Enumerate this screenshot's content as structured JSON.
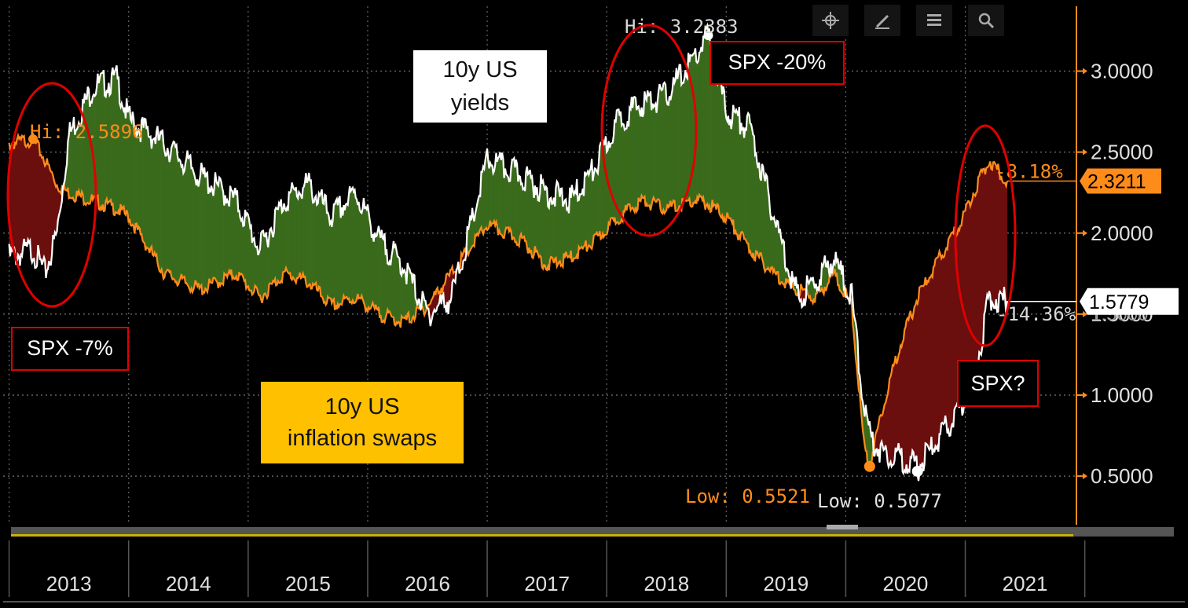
{
  "chart_data": {
    "type": "area",
    "title": "",
    "xlabel": "",
    "ylabel": "",
    "x_ticks": [
      "2013",
      "2014",
      "2015",
      "2016",
      "2017",
      "2018",
      "2019",
      "2020",
      "2021"
    ],
    "ylim": [
      0.2,
      3.4
    ],
    "y_ticks": [
      "0.5000",
      "1.0000",
      "1.5000",
      "2.0000",
      "2.5000",
      "3.0000"
    ],
    "grid": true,
    "series": [
      {
        "name": "10y US yields",
        "color": "#ffffff",
        "t": [
          2013.0,
          2013.2,
          2013.3,
          2013.4,
          2013.5,
          2013.7,
          2013.9,
          2014.0,
          2014.3,
          2014.6,
          2014.9,
          2015.1,
          2015.3,
          2015.5,
          2015.7,
          2015.9,
          2016.1,
          2016.3,
          2016.5,
          2016.7,
          2016.85,
          2017.0,
          2017.3,
          2017.5,
          2017.7,
          2017.9,
          2018.1,
          2018.3,
          2018.5,
          2018.75,
          2018.85,
          2019.0,
          2019.2,
          2019.4,
          2019.6,
          2019.75,
          2019.9,
          2020.05,
          2020.15,
          2020.2,
          2020.3,
          2020.45,
          2020.6,
          2020.75,
          2020.95,
          2021.1,
          2021.2,
          2021.35
        ],
        "values": [
          1.85,
          1.9,
          1.75,
          2.0,
          2.6,
          2.9,
          2.95,
          2.7,
          2.55,
          2.35,
          2.2,
          1.9,
          2.2,
          2.3,
          2.1,
          2.25,
          1.95,
          1.8,
          1.5,
          1.6,
          2.0,
          2.45,
          2.35,
          2.25,
          2.2,
          2.4,
          2.7,
          2.8,
          2.85,
          3.1,
          3.22,
          2.75,
          2.65,
          2.1,
          1.6,
          1.7,
          1.85,
          1.6,
          0.95,
          0.75,
          0.65,
          0.62,
          0.55,
          0.7,
          0.9,
          1.2,
          1.6,
          1.58
        ]
      },
      {
        "name": "10y US inflation swaps",
        "color": "#ff8c1a",
        "t": [
          2013.0,
          2013.2,
          2013.3,
          2013.4,
          2013.5,
          2013.7,
          2013.9,
          2014.0,
          2014.3,
          2014.6,
          2014.9,
          2015.1,
          2015.3,
          2015.5,
          2015.7,
          2015.9,
          2016.1,
          2016.3,
          2016.5,
          2016.7,
          2016.85,
          2017.0,
          2017.3,
          2017.5,
          2017.7,
          2017.9,
          2018.1,
          2018.3,
          2018.5,
          2018.75,
          2018.85,
          2019.0,
          2019.2,
          2019.4,
          2019.6,
          2019.75,
          2019.9,
          2020.05,
          2020.15,
          2020.2,
          2020.3,
          2020.45,
          2020.6,
          2020.75,
          2020.95,
          2021.1,
          2021.2,
          2021.35
        ],
        "values": [
          2.55,
          2.58,
          2.45,
          2.3,
          2.25,
          2.2,
          2.15,
          2.1,
          1.75,
          1.65,
          1.75,
          1.6,
          1.75,
          1.7,
          1.55,
          1.6,
          1.5,
          1.45,
          1.55,
          1.75,
          1.9,
          2.05,
          1.95,
          1.8,
          1.85,
          1.95,
          2.1,
          2.2,
          2.15,
          2.2,
          2.18,
          2.1,
          1.9,
          1.75,
          1.65,
          1.6,
          1.75,
          1.55,
          0.7,
          0.56,
          0.9,
          1.3,
          1.6,
          1.8,
          2.05,
          2.3,
          2.45,
          2.32
        ]
      }
    ],
    "annotations": {
      "hi_orange": "Hi: 2.5896",
      "hi_white": "Hi: 3.2383",
      "low_orange": "Low: 0.5521",
      "low_white": "Low: 0.5077",
      "last_orange_pct": "-8.18%",
      "last_white_pct": "-14.36%",
      "last_orange": "2.3211",
      "last_white": "1.5779",
      "partial_tick": "1.5000"
    },
    "callouts": {
      "yields_label": "10y US yields",
      "swaps_label": "10y US inflation swaps",
      "spx_2013": "SPX -7%",
      "spx_2018": "SPX -20%",
      "spx_2021": "SPX?"
    }
  },
  "colors": {
    "background": "#000000",
    "yields": "#ffffff",
    "swaps": "#ff8c1a",
    "fill_positive": "#3a6b1c",
    "fill_negative": "#6b0f0f",
    "highlight": "#e00000",
    "axis": "#ff8c1a"
  },
  "toolbar": {
    "icons": [
      "crosshair-icon",
      "draw-icon",
      "legend-icon",
      "zoom-icon"
    ]
  }
}
